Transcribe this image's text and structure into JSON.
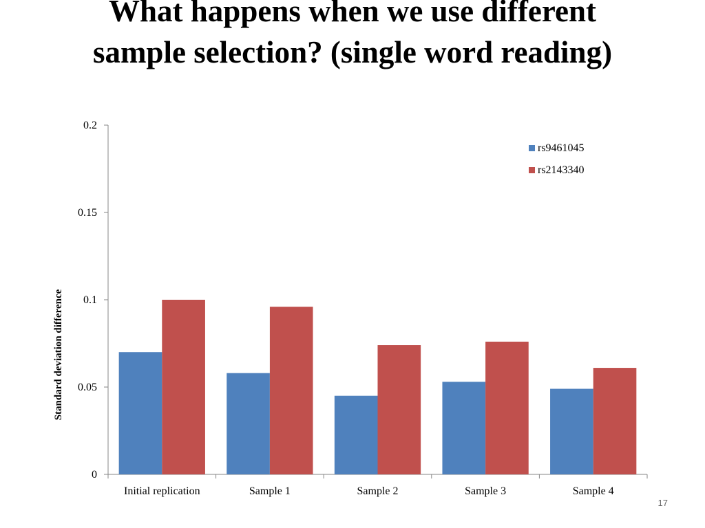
{
  "title": {
    "line1": "What happens when we use different",
    "line2": "sample selection? (single word reading)"
  },
  "page_number": "17",
  "chart_data": {
    "type": "bar",
    "title": "",
    "xlabel": "",
    "ylabel": "Standard deviation difference",
    "categories": [
      "Initial replication",
      "Sample 1",
      "Sample 2",
      "Sample 3",
      "Sample 4"
    ],
    "series": [
      {
        "name": "rs9461045",
        "color": "#4f81bd",
        "values": [
          0.07,
          0.058,
          0.045,
          0.053,
          0.049
        ]
      },
      {
        "name": "rs2143340",
        "color": "#c0504d",
        "values": [
          0.1,
          0.096,
          0.074,
          0.076,
          0.061
        ]
      }
    ],
    "ylim": [
      0,
      0.2
    ],
    "yticks": [
      "0",
      "0.05",
      "0.1",
      "0.15",
      "0.2"
    ],
    "grid": false,
    "legend_position": "top-right"
  }
}
